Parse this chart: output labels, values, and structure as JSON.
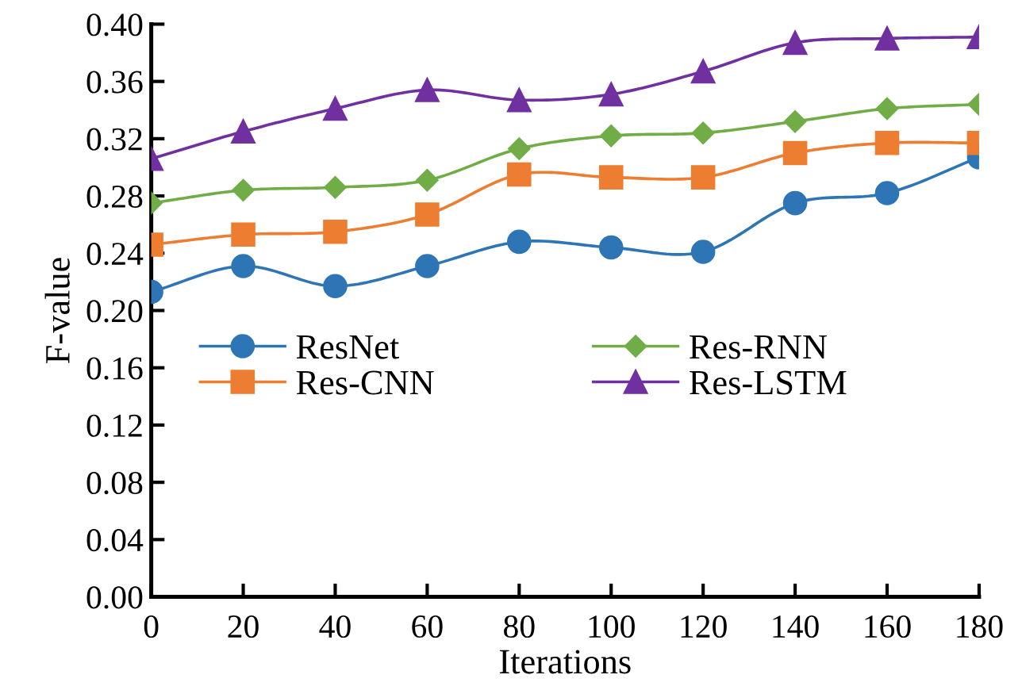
{
  "chart_data": {
    "type": "line",
    "xlabel": "Iterations",
    "ylabel": "F-value",
    "x": [
      0,
      20,
      40,
      60,
      80,
      100,
      120,
      140,
      160,
      180
    ],
    "xlim": [
      0,
      180
    ],
    "xticks": [
      0,
      20,
      40,
      60,
      80,
      100,
      120,
      140,
      160,
      180
    ],
    "ylim": [
      0,
      0.4
    ],
    "yticks": [
      {
        "value": 0,
        "label": "0.00"
      },
      {
        "value": 0.04,
        "label": "0.04"
      },
      {
        "value": 0.08,
        "label": "0.08"
      },
      {
        "value": 0.12,
        "label": "0.12"
      },
      {
        "value": 0.16,
        "label": "0.16"
      },
      {
        "value": 0.2,
        "label": "0.20"
      },
      {
        "value": 0.24,
        "label": "0.24"
      },
      {
        "value": 0.28,
        "label": "0.28"
      },
      {
        "value": 0.32,
        "label": "0.32"
      },
      {
        "value": 0.36,
        "label": "0.36"
      },
      {
        "value": 0.4,
        "label": "0.40"
      }
    ],
    "grid": false,
    "legend": "center",
    "series": [
      {
        "name": "ResNet",
        "color": "#2e75b6",
        "marker": "circle",
        "values": [
          0.213,
          0.231,
          0.217,
          0.231,
          0.248,
          0.244,
          0.241,
          0.275,
          0.282,
          0.307
        ]
      },
      {
        "name": "Res-RNN",
        "color": "#70ad47",
        "marker": "diamond",
        "values": [
          0.275,
          0.284,
          0.286,
          0.291,
          0.313,
          0.322,
          0.324,
          0.332,
          0.341,
          0.344
        ]
      },
      {
        "name": "Res-CNN",
        "color": "#ed7d31",
        "marker": "square",
        "values": [
          0.246,
          0.253,
          0.255,
          0.267,
          0.295,
          0.293,
          0.293,
          0.31,
          0.317,
          0.317
        ]
      },
      {
        "name": "Res-LSTM",
        "color": "#7030a0",
        "marker": "triangle",
        "values": [
          0.306,
          0.325,
          0.341,
          0.354,
          0.347,
          0.351,
          0.367,
          0.387,
          0.39,
          0.391
        ]
      }
    ]
  }
}
